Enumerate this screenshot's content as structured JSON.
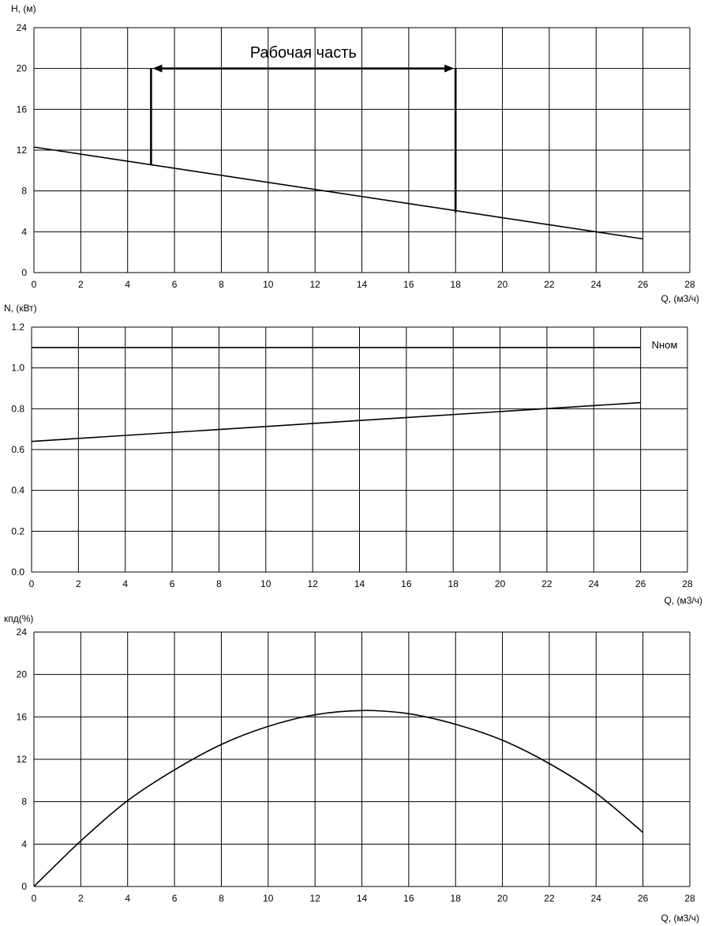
{
  "chart_data": [
    {
      "type": "line",
      "id": "head",
      "ylabel": "H, (м)",
      "xlabel": "Q, (м3/ч)",
      "xlim": [
        0,
        28
      ],
      "ylim": [
        0,
        24
      ],
      "xticks": [
        0,
        2,
        4,
        6,
        8,
        10,
        12,
        14,
        16,
        18,
        20,
        22,
        24,
        26,
        28
      ],
      "yticks": [
        0,
        4,
        8,
        12,
        16,
        20,
        24
      ],
      "ytick_labels": [
        "0",
        "4",
        "8",
        "12",
        "16",
        "20",
        "24"
      ],
      "grid": true,
      "series": [
        {
          "x": [
            0,
            26
          ],
          "y": [
            12.3,
            3.3
          ]
        }
      ],
      "annotation": {
        "text": "Рабочая часть",
        "x_start": 5,
        "x_end": 18,
        "arrow_y": 20,
        "text_x": 11.5,
        "text_y": 21.6,
        "left_bracket_bottom": 10.5,
        "right_bracket_bottom": 5.9
      }
    },
    {
      "type": "line",
      "id": "power",
      "ylabel": "N, (кВт)",
      "xlabel": "Q, (м3/ч)",
      "xlim": [
        0,
        28
      ],
      "ylim": [
        0,
        1.2
      ],
      "xticks": [
        0,
        2,
        4,
        6,
        8,
        10,
        12,
        14,
        16,
        18,
        20,
        22,
        24,
        26,
        28
      ],
      "yticks": [
        0,
        0.2,
        0.4,
        0.6,
        0.8,
        1.0,
        1.2
      ],
      "ytick_labels": [
        "0.0",
        "0.2",
        "0.4",
        "0.6",
        "0.8",
        "1.0",
        "1.2"
      ],
      "grid": true,
      "series": [
        {
          "x": [
            0,
            26
          ],
          "y": [
            0.64,
            0.83
          ]
        },
        {
          "name": "Nном",
          "x": [
            0,
            26
          ],
          "y": [
            1.1,
            1.1
          ]
        }
      ]
    },
    {
      "type": "line",
      "id": "efficiency",
      "ylabel": "кпд(%)",
      "xlabel": "Q, (м3/ч)",
      "xlim": [
        0,
        28
      ],
      "ylim": [
        0,
        24
      ],
      "xticks": [
        0,
        2,
        4,
        6,
        8,
        10,
        12,
        14,
        16,
        18,
        20,
        22,
        24,
        26,
        28
      ],
      "yticks": [
        0,
        4,
        8,
        12,
        16,
        20,
        24
      ],
      "ytick_labels": [
        "0",
        "4",
        "8",
        "12",
        "16",
        "20",
        "24"
      ],
      "grid": true,
      "series": [
        {
          "x": [
            0,
            2,
            4,
            6,
            8,
            10,
            12,
            14,
            16,
            18,
            20,
            22,
            24,
            26
          ],
          "y": [
            0,
            4.3,
            8.1,
            11.0,
            13.4,
            15.1,
            16.2,
            16.6,
            16.3,
            15.3,
            13.8,
            11.6,
            8.8,
            5.1
          ]
        }
      ]
    }
  ]
}
